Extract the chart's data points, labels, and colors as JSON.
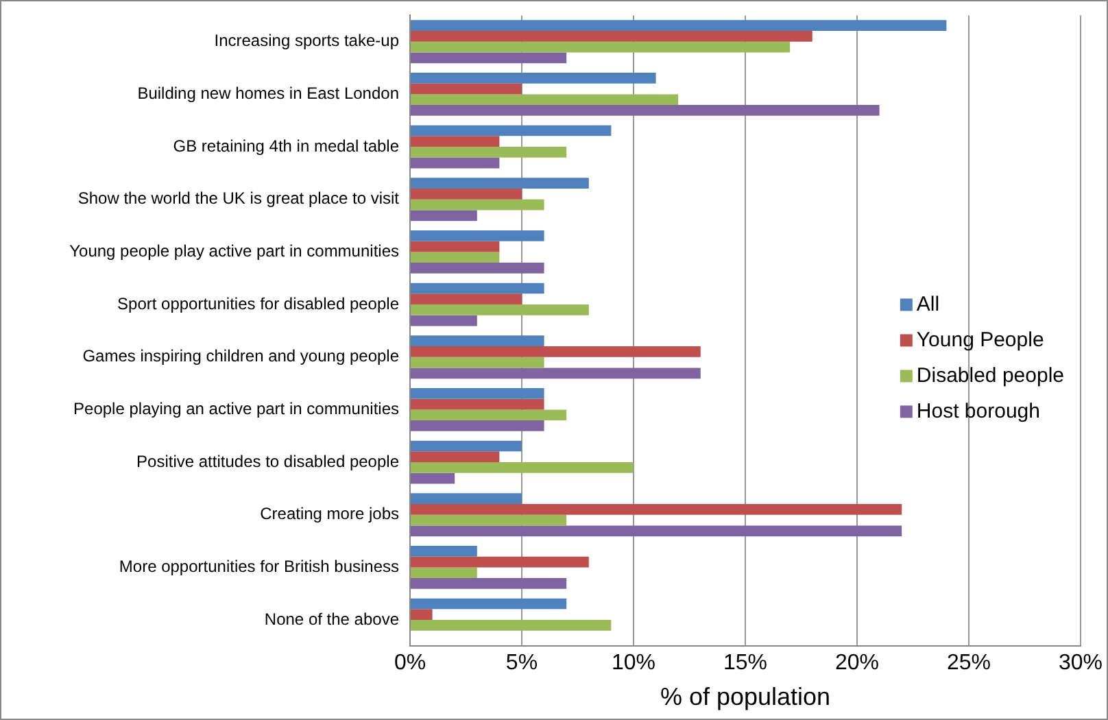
{
  "chart_data": {
    "type": "bar",
    "orientation": "horizontal",
    "xlabel": "% of population",
    "categories": [
      "Increasing sports take-up",
      "Building new homes in East London",
      "GB retaining 4th in medal table",
      "Show the world the UK is great place to visit",
      "Young people play active part in communities",
      "Sport opportunities for disabled people",
      "Games inspiring children and young people",
      "People playing an active part in communities",
      "Positive attitudes to disabled people",
      "Creating more jobs",
      "More opportunities for British business",
      "None of the above"
    ],
    "series": [
      {
        "name": "All",
        "color": "#4f81bd",
        "values": [
          24,
          11,
          9,
          8,
          6,
          6,
          6,
          6,
          5,
          5,
          3,
          7
        ]
      },
      {
        "name": "Young People",
        "color": "#c0504d",
        "values": [
          18,
          5,
          4,
          5,
          4,
          5,
          13,
          6,
          4,
          22,
          8,
          1
        ]
      },
      {
        "name": "Disabled people",
        "color": "#9bbb59",
        "values": [
          17,
          12,
          7,
          6,
          4,
          8,
          6,
          7,
          10,
          7,
          3,
          9
        ]
      },
      {
        "name": "Host borough",
        "color": "#8064a2",
        "values": [
          7,
          21,
          4,
          3,
          6,
          3,
          13,
          6,
          2,
          22,
          7,
          0
        ]
      }
    ],
    "xlim": [
      0,
      30
    ],
    "xticks": [
      {
        "value": 0,
        "label": "0%"
      },
      {
        "value": 5,
        "label": "5%"
      },
      {
        "value": 10,
        "label": "10%"
      },
      {
        "value": 15,
        "label": "15%"
      },
      {
        "value": 20,
        "label": "20%"
      },
      {
        "value": 25,
        "label": "25%"
      },
      {
        "value": 30,
        "label": "30%"
      }
    ],
    "grid": "x",
    "legend": "right"
  }
}
